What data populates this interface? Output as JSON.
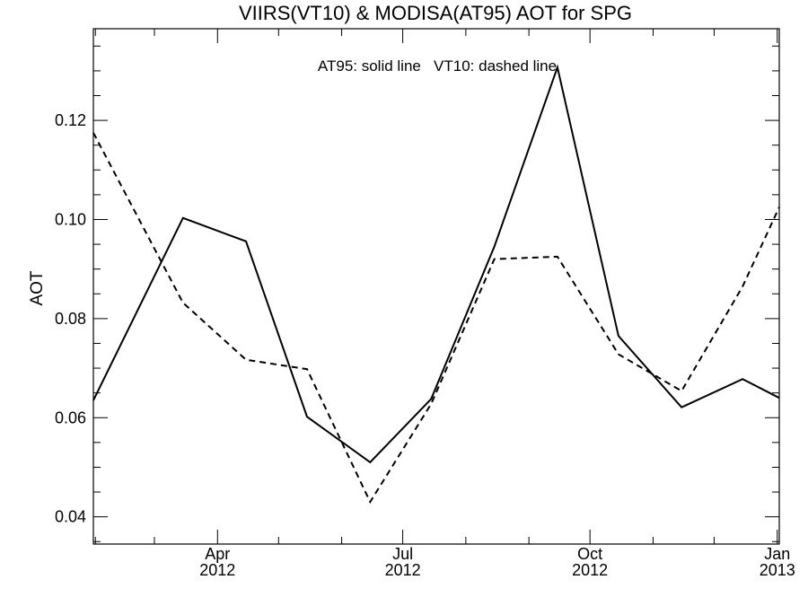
{
  "chart_data": {
    "type": "line",
    "title": "VIIRS(VT10) & MODISA(AT95)  AOT for SPG",
    "annotation": "AT95: solid line   VT10: dashed line",
    "xlabel": "",
    "ylabel": "AOT",
    "xlim": [
      "2012-01-31",
      "2013-01-02"
    ],
    "ylim": [
      0.0345,
      0.1385
    ],
    "yticks": [
      {
        "value": 0.04,
        "label": "0.04"
      },
      {
        "value": 0.06,
        "label": "0.06"
      },
      {
        "value": 0.08,
        "label": "0.08"
      },
      {
        "value": 0.1,
        "label": "0.10"
      },
      {
        "value": 0.12,
        "label": "0.12"
      }
    ],
    "yminor_step": 0.005,
    "xticks": [
      {
        "date": "2012-04-01",
        "label": "Apr",
        "year": "2012"
      },
      {
        "date": "2012-07-01",
        "label": "Jul",
        "year": "2012"
      },
      {
        "date": "2012-10-01",
        "label": "Oct",
        "year": "2012"
      },
      {
        "date": "2013-01-01",
        "label": "Jan",
        "year": "2013"
      }
    ],
    "xminor_dates": [
      "2012-02-01",
      "2012-03-01",
      "2012-05-01",
      "2012-06-01",
      "2012-08-01",
      "2012-09-01",
      "2012-11-01",
      "2012-12-01"
    ],
    "grid": false,
    "series": [
      {
        "name": "AT95",
        "style": "solid",
        "color": "#000000",
        "points": [
          {
            "x": "2012-01-31",
            "y": 0.0635
          },
          {
            "x": "2012-03-15",
            "y": 0.1003
          },
          {
            "x": "2012-04-15",
            "y": 0.0956
          },
          {
            "x": "2012-05-15",
            "y": 0.0602
          },
          {
            "x": "2012-06-15",
            "y": 0.051
          },
          {
            "x": "2012-07-15",
            "y": 0.0638
          },
          {
            "x": "2012-08-15",
            "y": 0.0945
          },
          {
            "x": "2012-09-15",
            "y": 0.1307
          },
          {
            "x": "2012-10-15",
            "y": 0.0765
          },
          {
            "x": "2012-11-15",
            "y": 0.0621
          },
          {
            "x": "2012-12-15",
            "y": 0.0678
          },
          {
            "x": "2013-01-02",
            "y": 0.064
          }
        ]
      },
      {
        "name": "VT10",
        "style": "dashed",
        "color": "#000000",
        "points": [
          {
            "x": "2012-01-31",
            "y": 0.1175
          },
          {
            "x": "2012-03-15",
            "y": 0.0832
          },
          {
            "x": "2012-04-15",
            "y": 0.0717
          },
          {
            "x": "2012-05-15",
            "y": 0.0698
          },
          {
            "x": "2012-06-15",
            "y": 0.043
          },
          {
            "x": "2012-07-15",
            "y": 0.0628
          },
          {
            "x": "2012-08-15",
            "y": 0.092
          },
          {
            "x": "2012-09-15",
            "y": 0.0925
          },
          {
            "x": "2012-10-15",
            "y": 0.0728
          },
          {
            "x": "2012-11-15",
            "y": 0.0654
          },
          {
            "x": "2012-12-15",
            "y": 0.0865
          },
          {
            "x": "2013-01-02",
            "y": 0.1025
          }
        ]
      }
    ]
  }
}
